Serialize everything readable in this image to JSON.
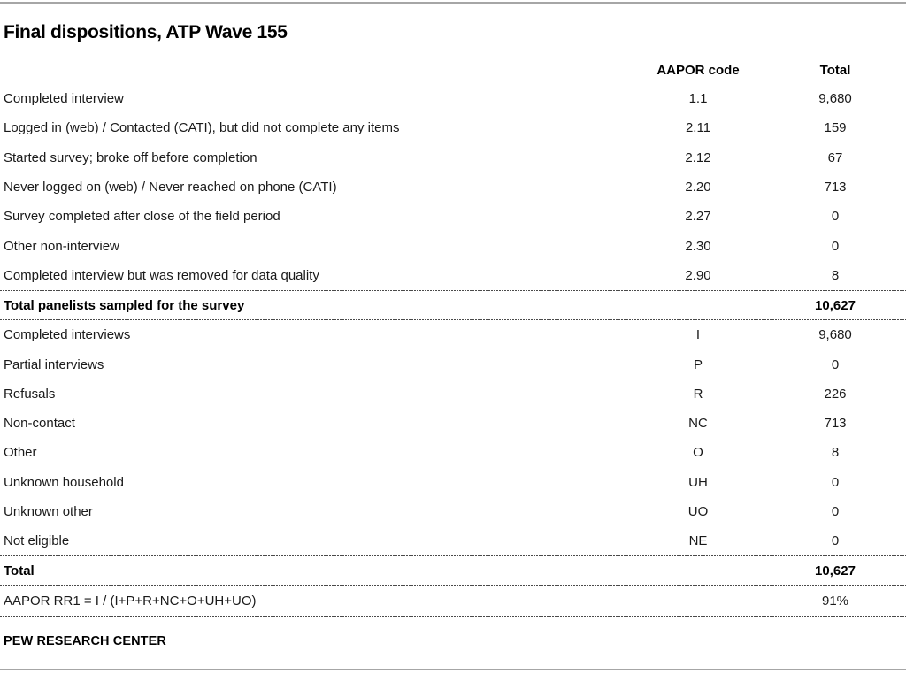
{
  "page": {
    "title": "Final dispositions, ATP Wave 155",
    "source": "PEW RESEARCH CENTER"
  },
  "table": {
    "headers": {
      "code": "AAPOR code",
      "total": "Total"
    },
    "section1": [
      {
        "label": "Completed interview",
        "code": "1.1",
        "total": "9,680"
      },
      {
        "label": "Logged in (web) / Contacted (CATI), but did not complete any items",
        "code": "2.11",
        "total": "159"
      },
      {
        "label": "Started survey; broke off before completion",
        "code": "2.12",
        "total": "67"
      },
      {
        "label": "Never logged on (web) / Never reached on phone (CATI)",
        "code": "2.20",
        "total": "713"
      },
      {
        "label": "Survey completed after close of the field period",
        "code": "2.27",
        "total": "0"
      },
      {
        "label": "Other non-interview",
        "code": "2.30",
        "total": "0"
      },
      {
        "label": "Completed interview but was removed for data quality",
        "code": "2.90",
        "total": "8"
      }
    ],
    "total1": {
      "label": "Total panelists sampled for the survey",
      "code": "",
      "total": "10,627"
    },
    "section2": [
      {
        "label": "Completed interviews",
        "code": "I",
        "total": "9,680"
      },
      {
        "label": "Partial interviews",
        "code": "P",
        "total": "0"
      },
      {
        "label": "Refusals",
        "code": "R",
        "total": "226"
      },
      {
        "label": "Non-contact",
        "code": "NC",
        "total": "713"
      },
      {
        "label": "Other",
        "code": "O",
        "total": "8"
      },
      {
        "label": "Unknown household",
        "code": "UH",
        "total": "0"
      },
      {
        "label": "Unknown other",
        "code": "UO",
        "total": "0"
      },
      {
        "label": "Not eligible",
        "code": "NE",
        "total": "0"
      }
    ],
    "total2": {
      "label": "Total",
      "code": "",
      "total": "10,627"
    },
    "rate": {
      "label": "AAPOR RR1 = I / (I+P+R+NC+O+UH+UO)",
      "code": "",
      "total": "91%"
    }
  },
  "colors": {
    "text": "#1a1a1a",
    "solid_rule": "#a6a6a6",
    "dashed_rule": "#4a4a4a"
  }
}
